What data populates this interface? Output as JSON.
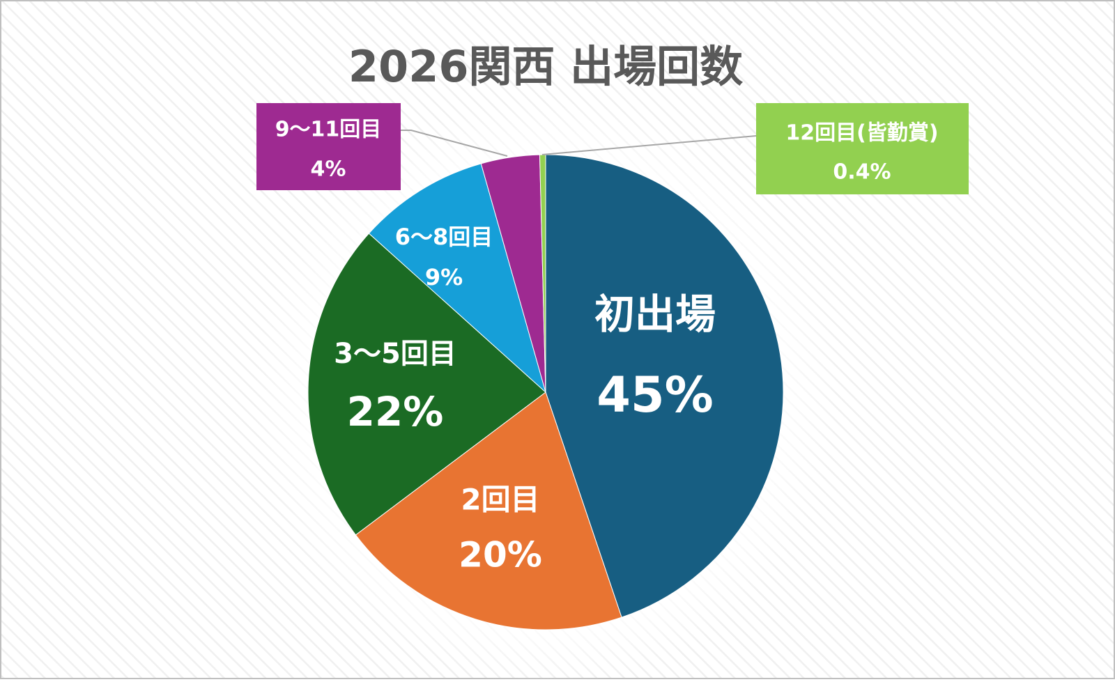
{
  "chart_data": {
    "type": "pie",
    "title": "2026関西 出場回数",
    "categories": [
      "初出場",
      "2回目",
      "3〜5回目",
      "6〜8回目",
      "9〜11回目",
      "12回目(皆勤賞)"
    ],
    "values": [
      45,
      20,
      22,
      9,
      4,
      0.4
    ],
    "value_labels": [
      "45%",
      "20%",
      "22%",
      "9%",
      "4%",
      "0.4%"
    ],
    "colors": [
      "#175e82",
      "#e87432",
      "#1b6b24",
      "#169fd8",
      "#9e2a91",
      "#92d050"
    ]
  }
}
